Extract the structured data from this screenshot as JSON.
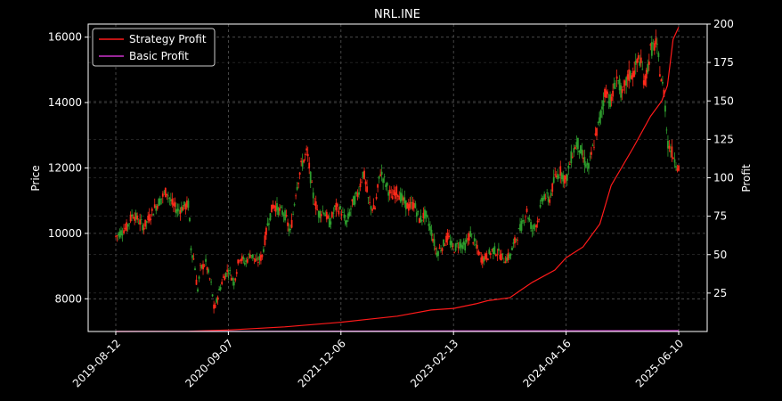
{
  "chart_data": {
    "type": "line",
    "title": "NRL.INE",
    "xlabel": "",
    "ylabel": "Price",
    "y2label": "Profit",
    "x_ticks": [
      "2019-08-12",
      "2020-09-07",
      "2021-12-06",
      "2023-02-13",
      "2024-04-16",
      "2025-06-10"
    ],
    "ylim": [
      7000,
      16400
    ],
    "y_ticks": [
      8000,
      10000,
      12000,
      14000,
      16000
    ],
    "y2lim": [
      0,
      200
    ],
    "y2_ticks": [
      25,
      50,
      75,
      100,
      125,
      150,
      175,
      200
    ],
    "grid": true,
    "legend_position": "top-left",
    "legend": [
      "Strategy Profit",
      "Basic Profit"
    ],
    "candle_colors": {
      "up": "#ff2a1a",
      "down": "#2e9e2e"
    },
    "price_path": [
      [
        0,
        9900
      ],
      [
        0.02,
        10200
      ],
      [
        0.03,
        10600
      ],
      [
        0.05,
        10200
      ],
      [
        0.07,
        10800
      ],
      [
        0.09,
        11300
      ],
      [
        0.1,
        10900
      ],
      [
        0.11,
        10700
      ],
      [
        0.12,
        10800
      ],
      [
        0.13,
        10900
      ],
      [
        0.133,
        9600
      ],
      [
        0.14,
        9100
      ],
      [
        0.145,
        8200
      ],
      [
        0.15,
        8900
      ],
      [
        0.16,
        9100
      ],
      [
        0.17,
        8400
      ],
      [
        0.175,
        7600
      ],
      [
        0.18,
        8000
      ],
      [
        0.19,
        8600
      ],
      [
        0.2,
        8900
      ],
      [
        0.21,
        8500
      ],
      [
        0.22,
        9300
      ],
      [
        0.23,
        9100
      ],
      [
        0.24,
        9400
      ],
      [
        0.25,
        9100
      ],
      [
        0.26,
        9300
      ],
      [
        0.27,
        10300
      ],
      [
        0.28,
        10900
      ],
      [
        0.29,
        10700
      ],
      [
        0.3,
        10600
      ],
      [
        0.31,
        10000
      ],
      [
        0.315,
        10600
      ],
      [
        0.32,
        11300
      ],
      [
        0.33,
        12100
      ],
      [
        0.34,
        12500
      ],
      [
        0.35,
        11200
      ],
      [
        0.36,
        10600
      ],
      [
        0.37,
        10700
      ],
      [
        0.38,
        10300
      ],
      [
        0.39,
        10800
      ],
      [
        0.4,
        10700
      ],
      [
        0.41,
        10300
      ],
      [
        0.42,
        10900
      ],
      [
        0.43,
        11200
      ],
      [
        0.44,
        11900
      ],
      [
        0.45,
        10900
      ],
      [
        0.46,
        10700
      ],
      [
        0.47,
        11900
      ],
      [
        0.48,
        11500
      ],
      [
        0.49,
        11100
      ],
      [
        0.5,
        11300
      ],
      [
        0.51,
        11000
      ],
      [
        0.52,
        10800
      ],
      [
        0.53,
        10900
      ],
      [
        0.54,
        10400
      ],
      [
        0.55,
        10600
      ],
      [
        0.56,
        10100
      ],
      [
        0.57,
        9400
      ],
      [
        0.58,
        9600
      ],
      [
        0.59,
        9900
      ],
      [
        0.6,
        9500
      ],
      [
        0.61,
        9700
      ],
      [
        0.62,
        9600
      ],
      [
        0.63,
        10000
      ],
      [
        0.64,
        9600
      ],
      [
        0.65,
        9200
      ],
      [
        0.66,
        9300
      ],
      [
        0.67,
        9500
      ],
      [
        0.68,
        9400
      ],
      [
        0.69,
        9200
      ],
      [
        0.7,
        9300
      ],
      [
        0.71,
        9800
      ],
      [
        0.72,
        10200
      ],
      [
        0.73,
        10700
      ],
      [
        0.74,
        10100
      ],
      [
        0.75,
        10400
      ],
      [
        0.76,
        11200
      ],
      [
        0.77,
        11000
      ],
      [
        0.78,
        11700
      ],
      [
        0.79,
        11900
      ],
      [
        0.8,
        11600
      ],
      [
        0.81,
        12400
      ],
      [
        0.82,
        12800
      ],
      [
        0.83,
        12300
      ],
      [
        0.84,
        12000
      ],
      [
        0.85,
        12800
      ],
      [
        0.86,
        13500
      ],
      [
        0.87,
        14400
      ],
      [
        0.88,
        14000
      ],
      [
        0.89,
        14800
      ],
      [
        0.9,
        14200
      ],
      [
        0.91,
        14800
      ],
      [
        0.92,
        14900
      ],
      [
        0.93,
        15400
      ],
      [
        0.94,
        14600
      ],
      [
        0.95,
        15600
      ],
      [
        0.96,
        15800
      ],
      [
        0.97,
        14600
      ],
      [
        0.975,
        14200
      ],
      [
        0.98,
        12800
      ],
      [
        0.99,
        12400
      ],
      [
        1.0,
        12000
      ]
    ],
    "series": [
      {
        "name": "Strategy Profit",
        "color": "#ff1a1a",
        "axis": "right",
        "x_frac": [
          0,
          0.13,
          0.2,
          0.3,
          0.4,
          0.45,
          0.5,
          0.56,
          0.6,
          0.64,
          0.66,
          0.7,
          0.72,
          0.74,
          0.78,
          0.8,
          0.83,
          0.86,
          0.88,
          0.92,
          0.95,
          0.97,
          0.98,
          0.99,
          1.0
        ],
        "values": [
          0,
          0.2,
          1,
          3,
          6,
          8,
          10,
          14,
          15,
          18,
          20,
          22,
          27,
          32,
          40,
          48,
          55,
          70,
          95,
          120,
          140,
          150,
          160,
          190,
          198
        ]
      },
      {
        "name": "Basic Profit",
        "color": "#cc33cc",
        "axis": "right",
        "x_frac": [
          0,
          0.5,
          1.0
        ],
        "values": [
          0,
          0.3,
          0.6
        ]
      }
    ]
  }
}
